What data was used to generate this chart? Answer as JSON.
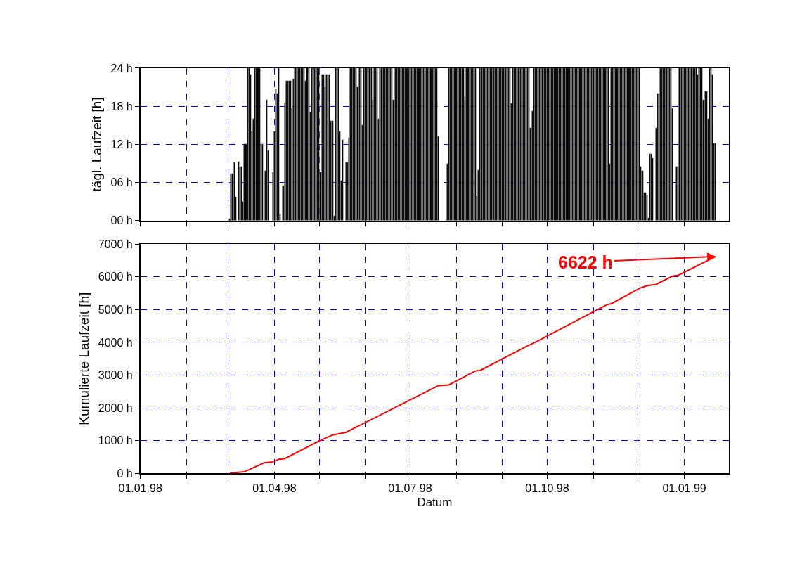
{
  "chart_data": [
    {
      "type": "bar",
      "ylabel": "tägl. Laufzeit [h]",
      "color": "#000000",
      "grid": true,
      "tick_labels": "y",
      "xlim": [
        "1998-01-01",
        "1999-01-31"
      ],
      "xticks": [
        {
          "value": "1998-01-01",
          "label": null
        },
        {
          "value": "1998-02-01",
          "label": null
        },
        {
          "value": "1998-03-01",
          "label": null
        },
        {
          "value": "1998-04-01",
          "label": null
        },
        {
          "value": "1998-05-01",
          "label": null
        },
        {
          "value": "1998-06-01",
          "label": null
        },
        {
          "value": "1998-07-01",
          "label": null
        },
        {
          "value": "1998-08-01",
          "label": null
        },
        {
          "value": "1998-09-01",
          "label": null
        },
        {
          "value": "1998-10-01",
          "label": null
        },
        {
          "value": "1998-11-01",
          "label": null
        },
        {
          "value": "1998-12-01",
          "label": null
        },
        {
          "value": "1999-01-01",
          "label": null
        }
      ],
      "ylim": [
        0,
        24
      ],
      "yticks": [
        {
          "value": 0,
          "label": "00 h"
        },
        {
          "value": 6,
          "label": "06 h"
        },
        {
          "value": 12,
          "label": "12 h"
        },
        {
          "value": 18,
          "label": "18 h"
        },
        {
          "value": 24,
          "label": "24 h"
        }
      ],
      "x": [
        "1998-03-02",
        "1998-03-03",
        "1998-03-04",
        "1998-03-05",
        "1998-03-06",
        "1998-03-07",
        "1998-03-08",
        "1998-03-09",
        "1998-03-10",
        "1998-03-11",
        "1998-03-12",
        "1998-03-13",
        "1998-03-14",
        "1998-03-15",
        "1998-03-16",
        "1998-03-17",
        "1998-03-18",
        "1998-03-19",
        "1998-03-20",
        "1998-03-21",
        "1998-03-22",
        "1998-03-23",
        "1998-03-24",
        "1998-03-25",
        "1998-03-26",
        "1998-03-27",
        "1998-03-28",
        "1998-03-29",
        "1998-03-30",
        "1998-03-31",
        "1998-04-01",
        "1998-04-02",
        "1998-04-03",
        "1998-04-04",
        "1998-04-05",
        "1998-04-06",
        "1998-04-07",
        "1998-04-08",
        "1998-04-09",
        "1998-04-10",
        "1998-04-11",
        "1998-04-12",
        "1998-04-13",
        "1998-04-14",
        "1998-04-15",
        "1998-04-16",
        "1998-04-17",
        "1998-04-18",
        "1998-04-19",
        "1998-04-20",
        "1998-04-21",
        "1998-04-22",
        "1998-04-23",
        "1998-04-24",
        "1998-04-25",
        "1998-04-26",
        "1998-04-27",
        "1998-04-28",
        "1998-04-29",
        "1998-04-30",
        "1998-05-01",
        "1998-05-02",
        "1998-05-03",
        "1998-05-04",
        "1998-05-05",
        "1998-05-06",
        "1998-05-07",
        "1998-05-08",
        "1998-05-09",
        "1998-05-10",
        "1998-05-11",
        "1998-05-12",
        "1998-05-13",
        "1998-05-14",
        "1998-05-15",
        "1998-05-16",
        "1998-05-17",
        "1998-05-18",
        "1998-05-19",
        "1998-05-20",
        "1998-05-21",
        "1998-05-22",
        "1998-05-23",
        "1998-05-24",
        "1998-05-25",
        "1998-05-26",
        "1998-05-27",
        "1998-05-28",
        "1998-05-29",
        "1998-05-30",
        "1998-05-31",
        "1998-06-01",
        "1998-06-02",
        "1998-06-03",
        "1998-06-04",
        "1998-06-05",
        "1998-06-06",
        "1998-06-07",
        "1998-06-08",
        "1998-06-09",
        "1998-06-10",
        "1998-06-11",
        "1998-06-12",
        "1998-06-13",
        "1998-06-14",
        "1998-06-15",
        "1998-06-16",
        "1998-06-17",
        "1998-06-18",
        "1998-06-19",
        "1998-06-20",
        "1998-06-21",
        "1998-06-22",
        "1998-06-23",
        "1998-06-24",
        "1998-06-25",
        "1998-06-26",
        "1998-06-27",
        "1998-06-28",
        "1998-06-29",
        "1998-06-30",
        "1998-07-01",
        "1998-07-02",
        "1998-07-03",
        "1998-07-04",
        "1998-07-05",
        "1998-07-06",
        "1998-07-07",
        "1998-07-08",
        "1998-07-09",
        "1998-07-10",
        "1998-07-11",
        "1998-07-12",
        "1998-07-13",
        "1998-07-14",
        "1998-07-15",
        "1998-07-16",
        "1998-07-17",
        "1998-07-18",
        "1998-07-19",
        "1998-07-20",
        "1998-07-21",
        "1998-07-22",
        "1998-07-23",
        "1998-07-24",
        "1998-07-25",
        "1998-07-26",
        "1998-07-27",
        "1998-07-28",
        "1998-07-29",
        "1998-07-30",
        "1998-07-31",
        "1998-08-01",
        "1998-08-02",
        "1998-08-03",
        "1998-08-04",
        "1998-08-05",
        "1998-08-06",
        "1998-08-07",
        "1998-08-08",
        "1998-08-09",
        "1998-08-10",
        "1998-08-11",
        "1998-08-12",
        "1998-08-13",
        "1998-08-14",
        "1998-08-15",
        "1998-08-16",
        "1998-08-17",
        "1998-08-18",
        "1998-08-19",
        "1998-08-20",
        "1998-08-21",
        "1998-08-22",
        "1998-08-23",
        "1998-08-24",
        "1998-08-25",
        "1998-08-26",
        "1998-08-27",
        "1998-08-28",
        "1998-08-29",
        "1998-08-30",
        "1998-08-31",
        "1998-09-01",
        "1998-09-02",
        "1998-09-03",
        "1998-09-04",
        "1998-09-05",
        "1998-09-06",
        "1998-09-07",
        "1998-09-08",
        "1998-09-09",
        "1998-09-10",
        "1998-09-11",
        "1998-09-12",
        "1998-09-13",
        "1998-09-14",
        "1998-09-15",
        "1998-09-16",
        "1998-09-17",
        "1998-09-18",
        "1998-09-19",
        "1998-09-20",
        "1998-09-21",
        "1998-09-22",
        "1998-09-23",
        "1998-09-24",
        "1998-09-25",
        "1998-09-26",
        "1998-09-27",
        "1998-09-28",
        "1998-09-29",
        "1998-09-30",
        "1998-10-01",
        "1998-10-02",
        "1998-10-03",
        "1998-10-04",
        "1998-10-05",
        "1998-10-06",
        "1998-10-07",
        "1998-10-08",
        "1998-10-09",
        "1998-10-10",
        "1998-10-11",
        "1998-10-12",
        "1998-10-13",
        "1998-10-14",
        "1998-10-15",
        "1998-10-16",
        "1998-10-17",
        "1998-10-18",
        "1998-10-19",
        "1998-10-20",
        "1998-10-21",
        "1998-10-22",
        "1998-10-23",
        "1998-10-24",
        "1998-10-25",
        "1998-10-26",
        "1998-10-27",
        "1998-10-28",
        "1998-10-29",
        "1998-10-30",
        "1998-10-31",
        "1998-11-01",
        "1998-11-02",
        "1998-11-03",
        "1998-11-04",
        "1998-11-05",
        "1998-11-06",
        "1998-11-07",
        "1998-11-08",
        "1998-11-09",
        "1998-11-10",
        "1998-11-11",
        "1998-11-12",
        "1998-11-13",
        "1998-11-14",
        "1998-11-15",
        "1998-11-16",
        "1998-11-17",
        "1998-11-18",
        "1998-11-19",
        "1998-11-20",
        "1998-11-21",
        "1998-11-22",
        "1998-11-23",
        "1998-11-24",
        "1998-11-25",
        "1998-11-26",
        "1998-11-27",
        "1998-11-28",
        "1998-11-29",
        "1998-11-30",
        "1998-12-01",
        "1998-12-02",
        "1998-12-03",
        "1998-12-04",
        "1998-12-05",
        "1998-12-06",
        "1998-12-07",
        "1998-12-08",
        "1998-12-09",
        "1998-12-10",
        "1998-12-11",
        "1998-12-12",
        "1998-12-13",
        "1998-12-14",
        "1998-12-15",
        "1998-12-16",
        "1998-12-17",
        "1998-12-18",
        "1998-12-19",
        "1998-12-20",
        "1998-12-21",
        "1998-12-22",
        "1998-12-23",
        "1998-12-24",
        "1998-12-25",
        "1998-12-26",
        "1998-12-27",
        "1998-12-28",
        "1998-12-29",
        "1998-12-30",
        "1998-12-31",
        "1999-01-01",
        "1999-01-02",
        "1999-01-03",
        "1999-01-04",
        "1999-01-05",
        "1999-01-06",
        "1999-01-07",
        "1999-01-08",
        "1999-01-09",
        "1999-01-10",
        "1999-01-11",
        "1999-01-12",
        "1999-01-13",
        "1999-01-14",
        "1999-01-15",
        "1999-01-16",
        "1999-01-17",
        "1999-01-18",
        "1999-01-19",
        "1999-01-20",
        "1999-01-21",
        "1999-01-22"
      ],
      "values": [
        0.3,
        7.4,
        7.4,
        9.2,
        3.7,
        0,
        9.3,
        8.5,
        8.5,
        3,
        12,
        12,
        24,
        24,
        23,
        14,
        16,
        24,
        24,
        24,
        24,
        12,
        12,
        0,
        7.8,
        19,
        11,
        0,
        0,
        7.6,
        14,
        20.7,
        20,
        24,
        1,
        0,
        5.5,
        18.5,
        22,
        22,
        22,
        22,
        17.7,
        22.3,
        24,
        24,
        24,
        24,
        24,
        24,
        24,
        22,
        24,
        24,
        17,
        24,
        24,
        24,
        24,
        24,
        24,
        7.6,
        23,
        23,
        21,
        23,
        23,
        23,
        15.7,
        15.7,
        0.7,
        24,
        24,
        24,
        14,
        6.3,
        12.7,
        0,
        9.2,
        9.2,
        13,
        24,
        24,
        24,
        24,
        24,
        21,
        24,
        24,
        15,
        24,
        24,
        24,
        24,
        24,
        24,
        19,
        24,
        24,
        24,
        16,
        24,
        24,
        24,
        24,
        24,
        24,
        24,
        24,
        24,
        19,
        24,
        24,
        24,
        24,
        24,
        24,
        24,
        24,
        24,
        24,
        24,
        24,
        24,
        24,
        24,
        24,
        24,
        24,
        24,
        24,
        24,
        24,
        24,
        24,
        24,
        24,
        24,
        24,
        24,
        13.3,
        0,
        0,
        0,
        0,
        0,
        8.9,
        24,
        24,
        24,
        24,
        24,
        24,
        24,
        24,
        24,
        24,
        24,
        19.5,
        24,
        24,
        24,
        24,
        24,
        24,
        24,
        3.9,
        8,
        24,
        24,
        24,
        24,
        24,
        24,
        24,
        24,
        24,
        24,
        24,
        24,
        24,
        24,
        24,
        24,
        24,
        24,
        24,
        24,
        24,
        18.5,
        24,
        24,
        24,
        24,
        24,
        24,
        24,
        24,
        24,
        24,
        24,
        24,
        14.6,
        17.2,
        24,
        24,
        24,
        24,
        24,
        24,
        24,
        24,
        24,
        24,
        24,
        24,
        24,
        24,
        24,
        24,
        24,
        24,
        24,
        24,
        24,
        24,
        24,
        24,
        24,
        24,
        24,
        24,
        24,
        24,
        24,
        24,
        24,
        24,
        24,
        24,
        24,
        24,
        24,
        24,
        24,
        24,
        24,
        24,
        24,
        24,
        24,
        24,
        24,
        24,
        24,
        8.9,
        24,
        24,
        24,
        24,
        24,
        24,
        24,
        24,
        24,
        24,
        24,
        24,
        24,
        24,
        24,
        24,
        24,
        24,
        24,
        24,
        8.5,
        7.8,
        4.4,
        4.4,
        4,
        0.4,
        10.5,
        10.5,
        9.8,
        0,
        14.6,
        20,
        20,
        24,
        24,
        24,
        24,
        24,
        24,
        24,
        24,
        17.7,
        0,
        0,
        8.5,
        8.5,
        24,
        24,
        24,
        24,
        24,
        24,
        24,
        24,
        24,
        24,
        24,
        24,
        23,
        24,
        24,
        24,
        19,
        20.3,
        20.3,
        16,
        24,
        24,
        23,
        12.2,
        12.2
      ]
    },
    {
      "type": "line",
      "xlabel": "Datum",
      "ylabel": "Kumulierte Laufzeit [h]",
      "color": "#ff0000",
      "grid": true,
      "xlim": [
        "1998-01-01",
        "1999-01-31"
      ],
      "xticks": [
        {
          "value": "1998-01-01",
          "label": "01.01.98"
        },
        {
          "value": "1998-02-01",
          "label": null
        },
        {
          "value": "1998-03-01",
          "label": null
        },
        {
          "value": "1998-04-01",
          "label": "01.04.98"
        },
        {
          "value": "1998-05-01",
          "label": null
        },
        {
          "value": "1998-06-01",
          "label": null
        },
        {
          "value": "1998-07-01",
          "label": "01.07.98"
        },
        {
          "value": "1998-08-01",
          "label": null
        },
        {
          "value": "1998-09-01",
          "label": null
        },
        {
          "value": "1998-10-01",
          "label": "01.10.98"
        },
        {
          "value": "1998-11-01",
          "label": null
        },
        {
          "value": "1998-12-01",
          "label": null
        },
        {
          "value": "1999-01-01",
          "label": "01.01.99"
        }
      ],
      "ylim": [
        0,
        7000
      ],
      "yticks": [
        {
          "value": 0,
          "label": "0 h"
        },
        {
          "value": 1000,
          "label": "1000 h"
        },
        {
          "value": 2000,
          "label": "2000 h"
        },
        {
          "value": 3000,
          "label": "3000 h"
        },
        {
          "value": 4000,
          "label": "4000 h"
        },
        {
          "value": 5000,
          "label": "5000 h"
        },
        {
          "value": 6000,
          "label": "6000 h"
        },
        {
          "value": 7000,
          "label": "7000 h"
        }
      ],
      "x": [
        "1998-03-02",
        "1998-03-12",
        "1998-03-25",
        "1998-03-31",
        "1998-04-04",
        "1998-04-08",
        "1998-05-01",
        "1998-05-10",
        "1998-05-19",
        "1998-06-30",
        "1998-07-20",
        "1998-07-27",
        "1998-08-14",
        "1998-08-17",
        "1998-09-18",
        "1998-09-23",
        "1998-11-10",
        "1998-11-13",
        "1998-12-02",
        "1998-12-07",
        "1998-12-13",
        "1998-12-24",
        "1998-12-28",
        "1999-01-22"
      ],
      "values": [
        0,
        50,
        320,
        350,
        430,
        450,
        990,
        1170,
        1250,
        2220,
        2680,
        2700,
        3130,
        3140,
        3900,
        4000,
        5150,
        5180,
        5650,
        5730,
        5770,
        6020,
        6050,
        6622
      ],
      "annotations": [
        {
          "text": "6622 h",
          "x": "1999-01-22",
          "y": 6622
        }
      ]
    }
  ]
}
